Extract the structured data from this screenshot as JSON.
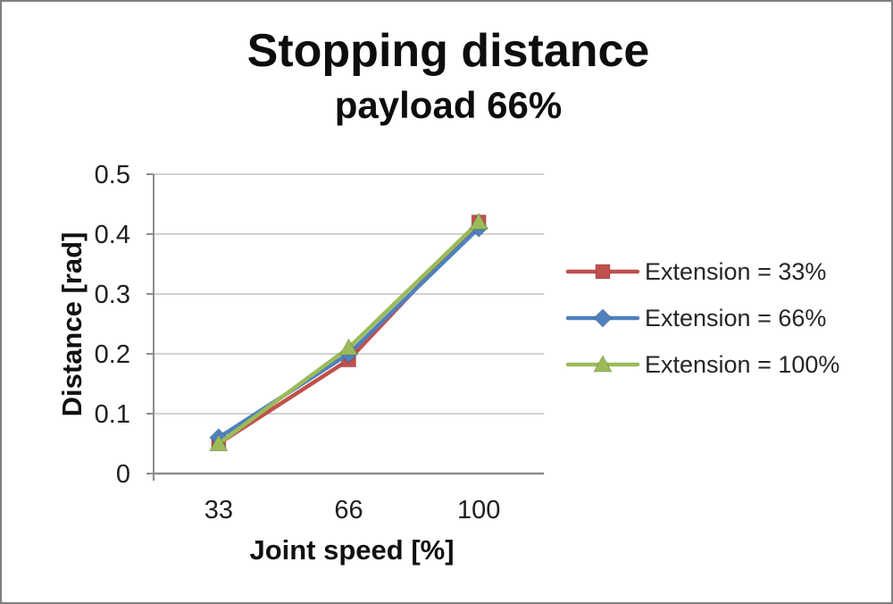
{
  "window": {
    "background": "#ffffff",
    "border_color": "#7f7f7f"
  },
  "chart_data": {
    "type": "line",
    "title": "Stopping distance",
    "subtitle": "payload 66%",
    "xlabel": "Joint speed [%]",
    "ylabel": "Distance [rad]",
    "categories": [
      "33",
      "66",
      "100"
    ],
    "y_ticks": [
      0,
      0.1,
      0.2,
      0.3,
      0.4,
      0.5
    ],
    "y_tick_labels": [
      "0",
      "0.1",
      "0.2",
      "0.3",
      "0.4",
      "0.5"
    ],
    "ylim": [
      0,
      0.5
    ],
    "grid": true,
    "legend_position": "right",
    "series": [
      {
        "name": "Extension = 33%",
        "marker": "square",
        "color": "#C0504D",
        "values": [
          0.05,
          0.19,
          0.42
        ]
      },
      {
        "name": "Extension = 66%",
        "marker": "diamond",
        "color": "#4F81BD",
        "values": [
          0.06,
          0.2,
          0.41
        ]
      },
      {
        "name": "Extension = 100%",
        "marker": "triangle",
        "color": "#9BBB59",
        "values": [
          0.05,
          0.21,
          0.42
        ]
      }
    ],
    "colors": {
      "grid": "#c3c3c3",
      "axis": "#8c8c8c",
      "tick_text": "#1f1f1f",
      "title_text": "#0d0d0d"
    }
  }
}
